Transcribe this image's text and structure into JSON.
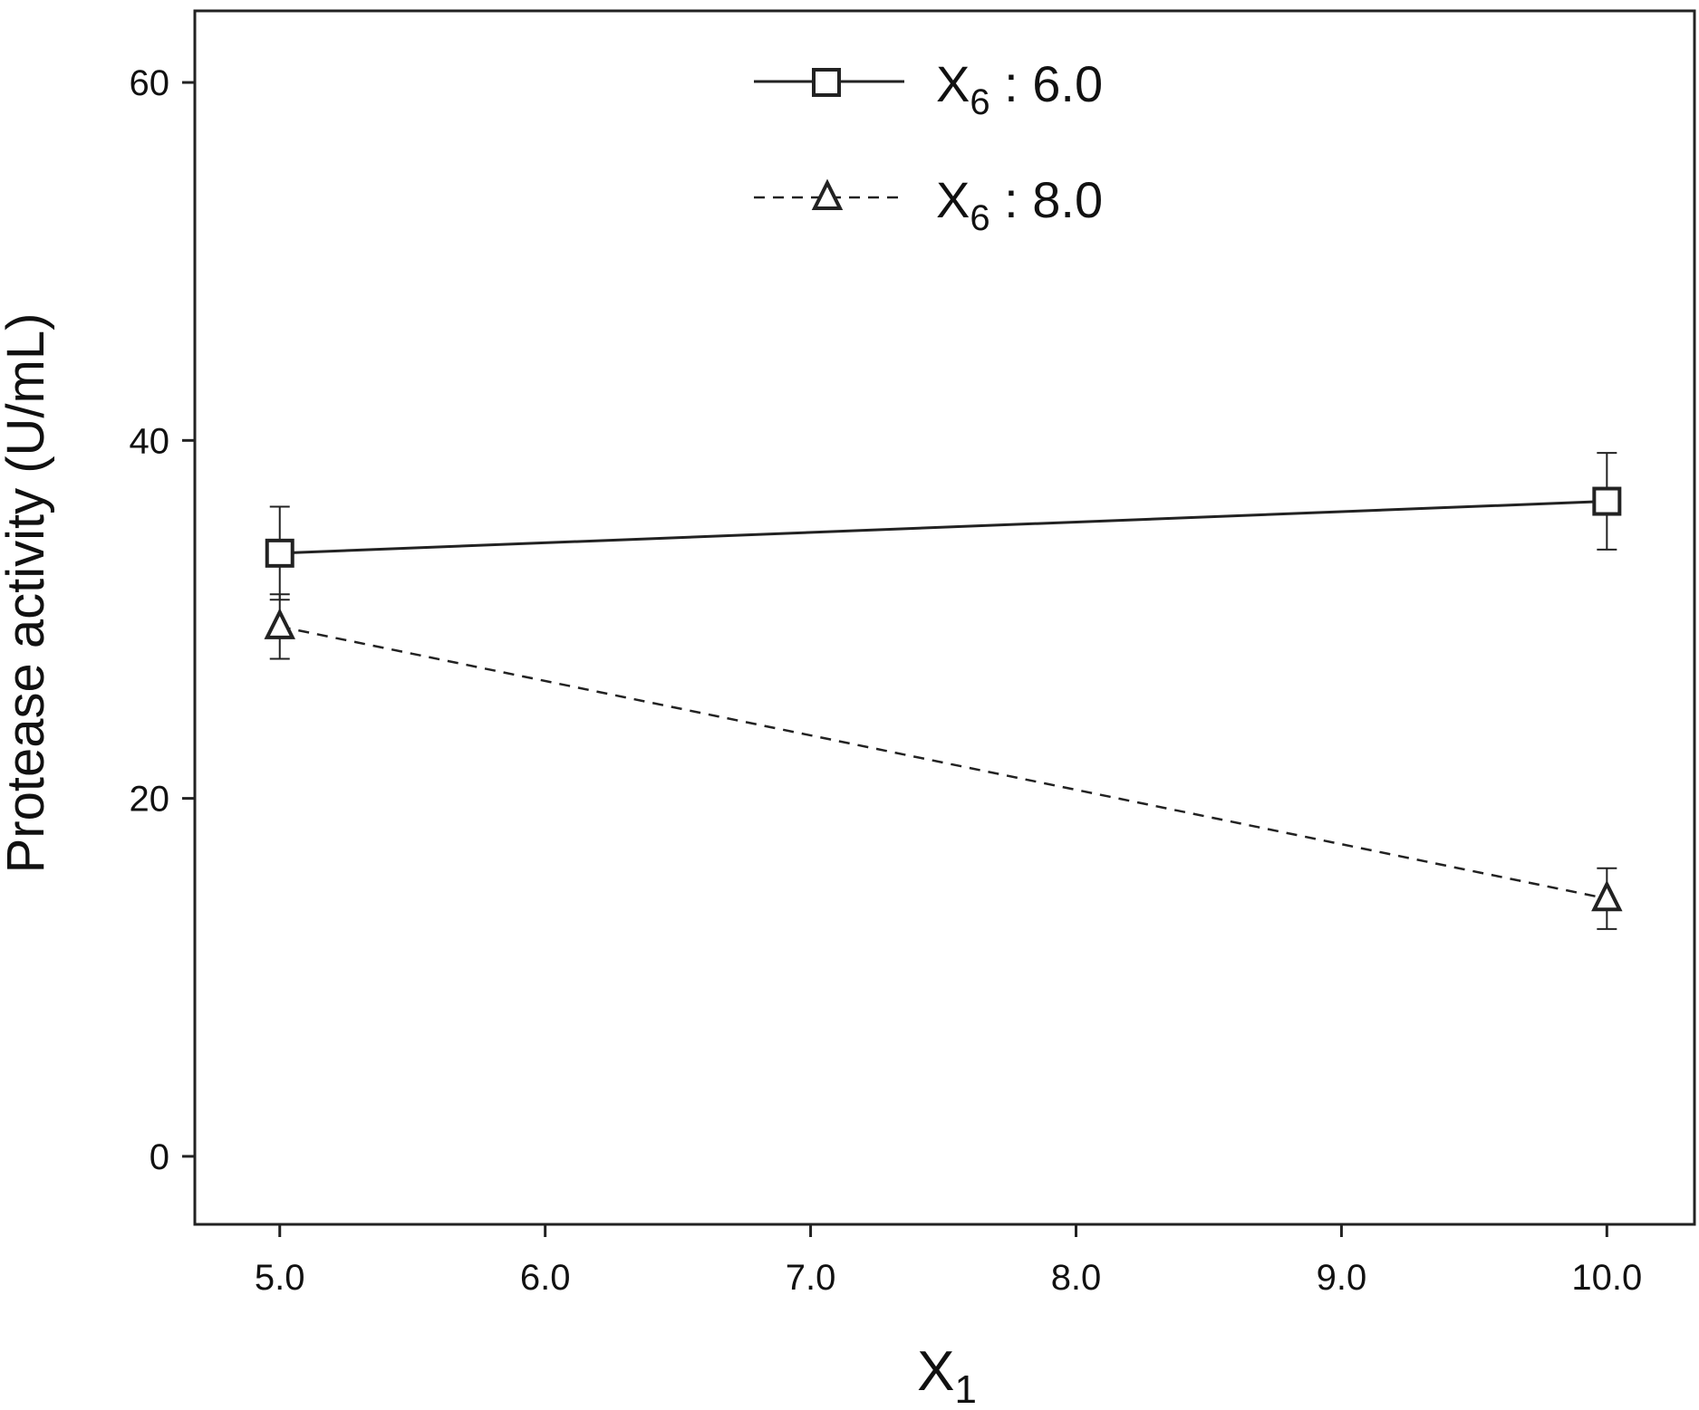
{
  "chart_data": {
    "type": "line",
    "title": "",
    "xlabel": "X",
    "xlabel_sub": "1",
    "ylabel": "Protease activity (U/mL)",
    "xlim": [
      4.68,
      10.33
    ],
    "ylim": [
      -3.8,
      64
    ],
    "x_ticks": [
      "5.0",
      "6.0",
      "7.0",
      "8.0",
      "9.0",
      "10.0"
    ],
    "y_ticks": [
      "0",
      "20",
      "40",
      "60"
    ],
    "x_tick_values": [
      5,
      6,
      7,
      8,
      9,
      10
    ],
    "y_tick_values": [
      0,
      20,
      40,
      60
    ],
    "grid": false,
    "legend_position": "top-center",
    "series": [
      {
        "name": "X6 : 6.0",
        "label_main": "X",
        "label_sub": "6",
        "label_rest": " : 6.0",
        "marker": "square",
        "line_style": "solid",
        "x": [
          5,
          10
        ],
        "y": [
          33.7,
          36.6
        ],
        "error": [
          2.6,
          2.7
        ]
      },
      {
        "name": "X6 : 8.0",
        "label_main": "X",
        "label_sub": "6",
        "label_rest": " : 8.0",
        "marker": "triangle",
        "line_style": "dashed",
        "x": [
          5,
          10
        ],
        "y": [
          29.6,
          14.4
        ],
        "error": [
          1.8,
          1.7
        ]
      }
    ],
    "colors": {
      "ink": "#222222"
    }
  }
}
